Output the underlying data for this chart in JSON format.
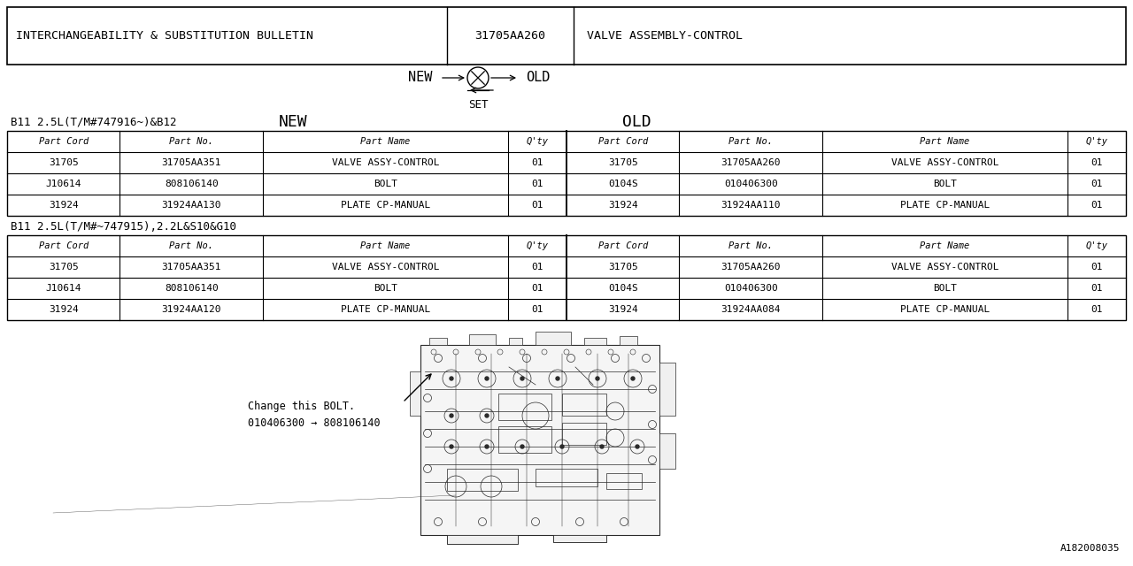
{
  "title_left": "INTERCHANGEABILITY & SUBSTITUTION BULLETIN",
  "title_mid": "31705AA260",
  "title_right": "VALVE ASSEMBLY-CONTROL",
  "bg_color": "#ffffff",
  "text_color": "#000000",
  "border_color": "#000000",
  "section1_label": "B11 2.5L(T/M#747916~)&B12",
  "section2_label": "B11 2.5L(T/M#~747915),2.2L&S10&G10",
  "table_headers": [
    "Part Cord",
    "Part No.",
    "Part Name",
    "Q'ty",
    "Part Cord",
    "Part No.",
    "Part Name",
    "Q'ty"
  ],
  "table1_data": [
    [
      "31705",
      "31705AA351",
      "VALVE ASSY-CONTROL",
      "01",
      "31705",
      "31705AA260",
      "VALVE ASSY-CONTROL",
      "01"
    ],
    [
      "J10614",
      "808106140",
      "BOLT",
      "01",
      "0104S",
      "010406300",
      "BOLT",
      "01"
    ],
    [
      "31924",
      "31924AA130",
      "PLATE CP-MANUAL",
      "01",
      "31924",
      "31924AA110",
      "PLATE CP-MANUAL",
      "01"
    ]
  ],
  "table2_data": [
    [
      "31705",
      "31705AA351",
      "VALVE ASSY-CONTROL",
      "01",
      "31705",
      "31705AA260",
      "VALVE ASSY-CONTROL",
      "01"
    ],
    [
      "J10614",
      "808106140",
      "BOLT",
      "01",
      "0104S",
      "010406300",
      "BOLT",
      "01"
    ],
    [
      "31924",
      "31924AA120",
      "PLATE CP-MANUAL",
      "01",
      "31924",
      "31924AA084",
      "PLATE CP-MANUAL",
      "01"
    ]
  ],
  "annotation_line1": "Change this BOLT.",
  "annotation_line2": "010406300 → 808106140",
  "doc_number": "A182008035",
  "col_props": [
    0.085,
    0.108,
    0.185,
    0.044,
    0.085,
    0.108,
    0.185,
    0.044
  ],
  "font_size": 8.0,
  "header_font_size": 8.0
}
